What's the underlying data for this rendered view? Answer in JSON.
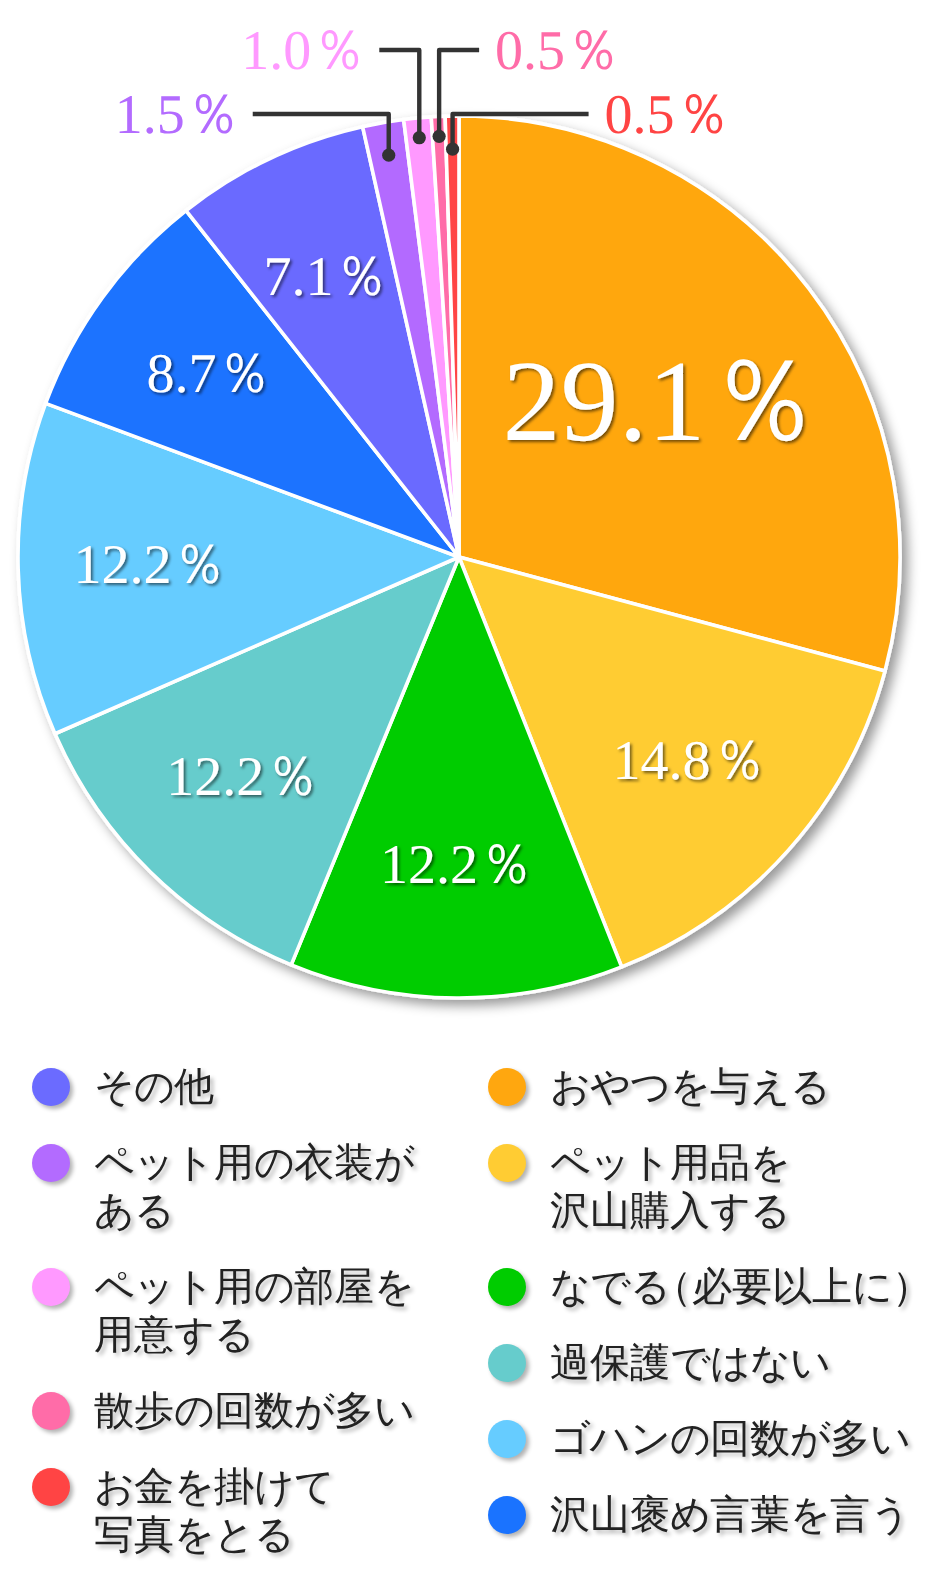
{
  "chart_data": {
    "type": "pie",
    "categories": [
      "おやつを与える",
      "ペット用品を沢山購入する",
      "なでる（必要以上に）",
      "過保護ではない",
      "ゴハンの回数が多い",
      "沢山褒め言葉を言う",
      "その他",
      "ペット用の衣装がある",
      "ペット用の部屋を用意する",
      "散歩の回数が多い",
      "お金を掛けて写真をとる"
    ],
    "values": [
      29.1,
      14.8,
      12.2,
      12.2,
      12.2,
      8.7,
      7.1,
      1.5,
      1.0,
      0.5,
      0.5
    ],
    "colors": [
      "#ffa70f",
      "#ffcc33",
      "#00cc00",
      "#66cccc",
      "#66ccff",
      "#1a73ff",
      "#6b6bff",
      "#b36bff",
      "#ff99ff",
      "#ff6ca8",
      "#ff4444"
    ],
    "value_labels": [
      "29.1％",
      "14.8％",
      "12.2％",
      "12.2％",
      "12.2％",
      "8.7％",
      "7.1％",
      "1.5％",
      "1.0％",
      "0.5％",
      "0.5％"
    ],
    "legend": "bottom"
  }
}
